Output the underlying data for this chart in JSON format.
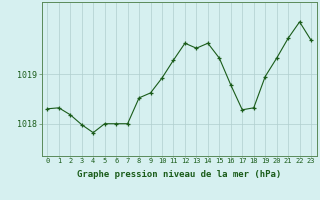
{
  "x": [
    0,
    1,
    2,
    3,
    4,
    5,
    6,
    7,
    8,
    9,
    10,
    11,
    12,
    13,
    14,
    15,
    16,
    17,
    18,
    19,
    20,
    21,
    22,
    23
  ],
  "y": [
    1018.3,
    1018.32,
    1018.18,
    1017.98,
    1017.82,
    1018.0,
    1018.0,
    1018.0,
    1018.52,
    1018.62,
    1018.92,
    1019.28,
    1019.62,
    1019.52,
    1019.62,
    1019.32,
    1018.78,
    1018.28,
    1018.32,
    1018.95,
    1019.32,
    1019.72,
    1020.05,
    1019.68
  ],
  "line_color": "#1a5c1a",
  "marker": "+",
  "marker_size": 3,
  "marker_linewidth": 0.9,
  "line_width": 0.8,
  "bg_color": "#d6f0f0",
  "grid_color": "#b0cece",
  "xlabel": "Graphe pression niveau de la mer (hPa)",
  "xlabel_fontsize": 6.5,
  "xlabel_color": "#1a5c1a",
  "ytick_labels": [
    "1018",
    "1019"
  ],
  "ytick_values": [
    1018,
    1019
  ],
  "ylim": [
    1017.35,
    1020.45
  ],
  "xlim": [
    -0.5,
    23.5
  ],
  "tick_color": "#1a5c1a",
  "xtick_fontsize": 5.0,
  "ytick_fontsize": 6.0,
  "spine_color": "#5a8a5a"
}
